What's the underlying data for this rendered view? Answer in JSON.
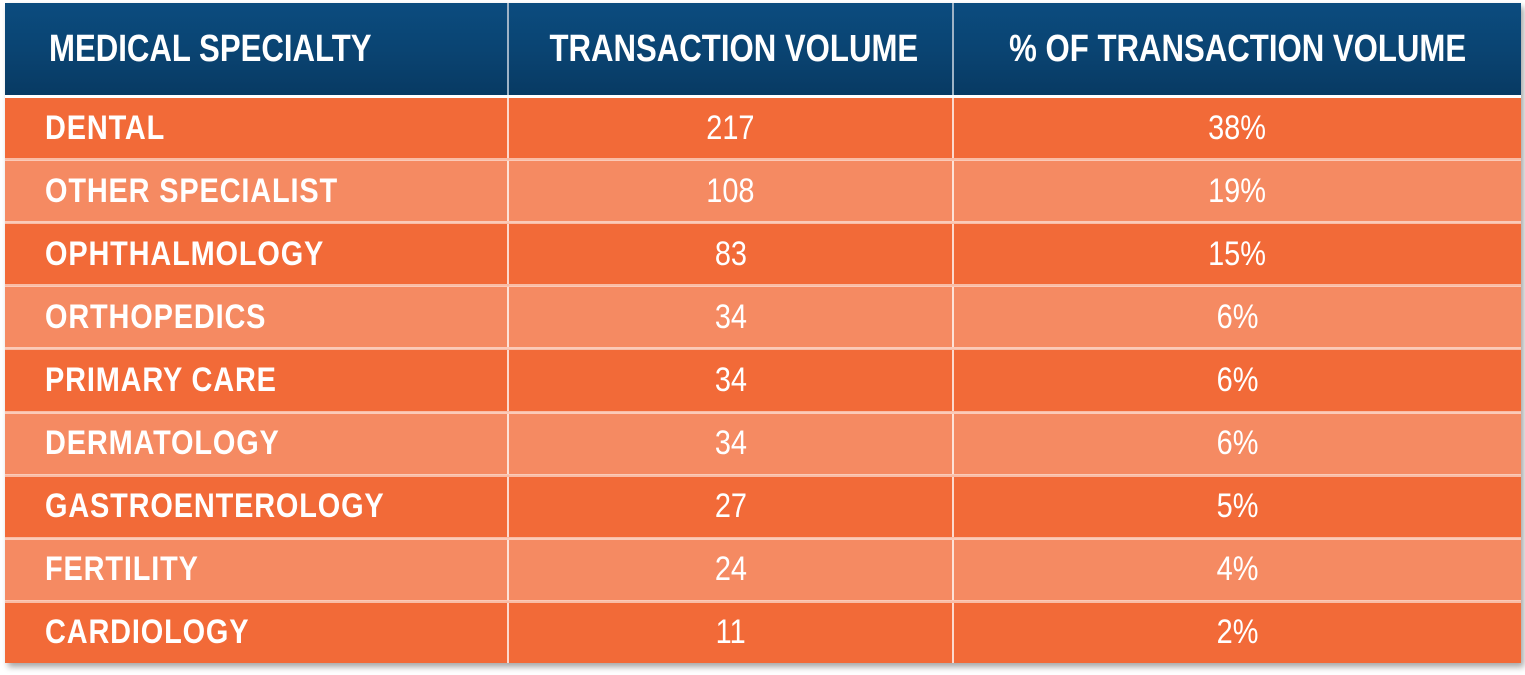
{
  "chart_data": {
    "type": "table",
    "columns": [
      "MEDICAL SPECIALTY",
      "TRANSACTION VOLUME",
      "% OF TRANSACTION VOLUME"
    ],
    "rows": [
      {
        "specialty": "DENTAL",
        "volume": "217",
        "percent": "38%"
      },
      {
        "specialty": "OTHER SPECIALIST",
        "volume": "108",
        "percent": "19%"
      },
      {
        "specialty": "OPHTHALMOLOGY",
        "volume": "83",
        "percent": "15%"
      },
      {
        "specialty": "ORTHOPEDICS",
        "volume": "34",
        "percent": "6%"
      },
      {
        "specialty": "PRIMARY CARE",
        "volume": "34",
        "percent": "6%"
      },
      {
        "specialty": "DERMATOLOGY",
        "volume": "34",
        "percent": "6%"
      },
      {
        "specialty": "GASTROENTEROLOGY",
        "volume": "27",
        "percent": "5%"
      },
      {
        "specialty": "FERTILITY",
        "volume": "24",
        "percent": "4%"
      },
      {
        "specialty": "CARDIOLOGY",
        "volume": "11",
        "percent": "2%"
      }
    ]
  },
  "colors": {
    "header": "#0a4371",
    "row_dark": "#f26a38",
    "row_light": "#f58a62",
    "text": "#ffffff"
  }
}
